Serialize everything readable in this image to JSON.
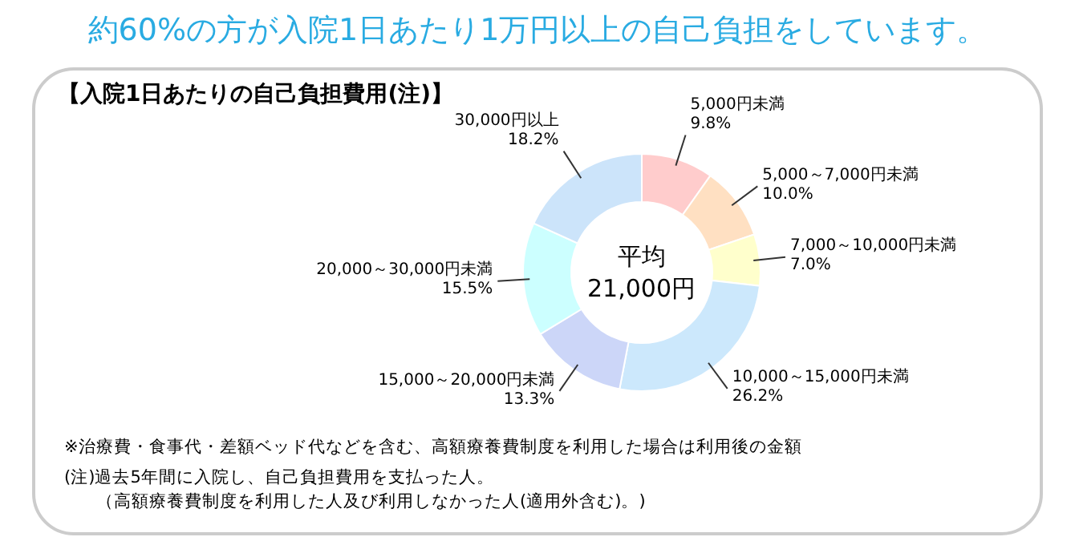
{
  "chart_data": {
    "type": "donut",
    "title": "約60%の方が入院1日あたり1万円以上の自己負担をしています。",
    "subtitle": "【入院1日あたりの自己負担費用(注)】",
    "categories": [
      "5,000円未満",
      "5,000～7,000円未満",
      "7,000～10,000円未満",
      "10,000～15,000円未満",
      "15,000～20,000円未満",
      "20,000～30,000円未満",
      "30,000円以上"
    ],
    "values": [
      9.8,
      10.0,
      7.0,
      26.2,
      13.3,
      15.5,
      18.2
    ],
    "value_labels": [
      "9.8%",
      "10.0%",
      "7.0%",
      "26.2%",
      "13.3%",
      "15.5%",
      "18.2%"
    ],
    "colors": [
      "#ffcccc",
      "#ffe0c2",
      "#ffffcc",
      "#cce8fc",
      "#ccd6f8",
      "#ccffff",
      "#cce4fa"
    ],
    "annotations": [
      "平均",
      "21,000円",
      "※治療費・食事代・差額ベッド代などを含む、高額療養費制度を利用した場合は利用後の金額",
      "(注)過去5年間に入院し、自己負担費用を支払った人。",
      "（高額療養費制度を利用した人及び利用しなかった人(適用外含む)。)"
    ]
  }
}
